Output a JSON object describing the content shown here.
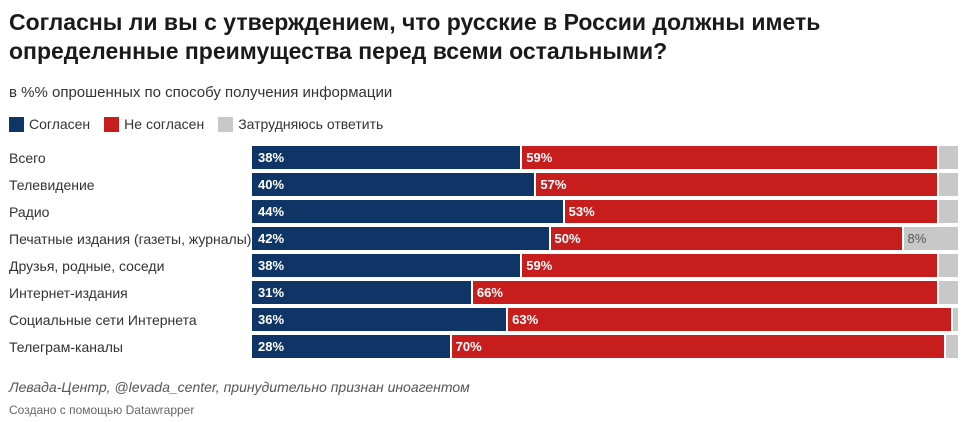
{
  "title": "Согласны ли вы с утверждением, что русские в России должны иметь определенные преимущества перед всеми остальными?",
  "subtitle": "в %% опрошенных по способу получения информации",
  "legend": [
    {
      "label": "Согласен",
      "color": "#0f3566"
    },
    {
      "label": "Не согласен",
      "color": "#c71e1d"
    },
    {
      "label": "Затрудняюсь ответить",
      "color": "#c8c8c8"
    }
  ],
  "source": "Левада-Центр, @levada_center, принудительно признан иноагентом",
  "credit": "Создано с помощью Datawrapper",
  "chart_data": {
    "type": "bar",
    "stacked": true,
    "orientation": "horizontal",
    "categories": [
      "Всего",
      "Телевидение",
      "Радио",
      "Печатные издания (газеты, журналы)",
      "Друзья, родные, соседи",
      "Интернет-издания",
      "Социальные сети Интернета",
      "Телеграм-каналы"
    ],
    "series": [
      {
        "name": "Согласен",
        "color": "#0f3566",
        "values": [
          38,
          40,
          44,
          42,
          38,
          31,
          36,
          28
        ]
      },
      {
        "name": "Не согласен",
        "color": "#c71e1d",
        "values": [
          59,
          57,
          53,
          50,
          59,
          66,
          63,
          70
        ]
      },
      {
        "name": "Затрудняюсь ответить",
        "color": "#c8c8c8",
        "values": [
          3,
          3,
          3,
          8,
          3,
          3,
          1,
          2
        ]
      }
    ],
    "labels": [
      [
        "38%",
        "59%",
        ""
      ],
      [
        "40%",
        "57%",
        ""
      ],
      [
        "44%",
        "53%",
        ""
      ],
      [
        "42%",
        "50%",
        "8%"
      ],
      [
        "38%",
        "59%",
        ""
      ],
      [
        "31%",
        "66%",
        ""
      ],
      [
        "36%",
        "63%",
        ""
      ],
      [
        "28%",
        "70%",
        ""
      ]
    ],
    "xlim": [
      0,
      100
    ]
  }
}
